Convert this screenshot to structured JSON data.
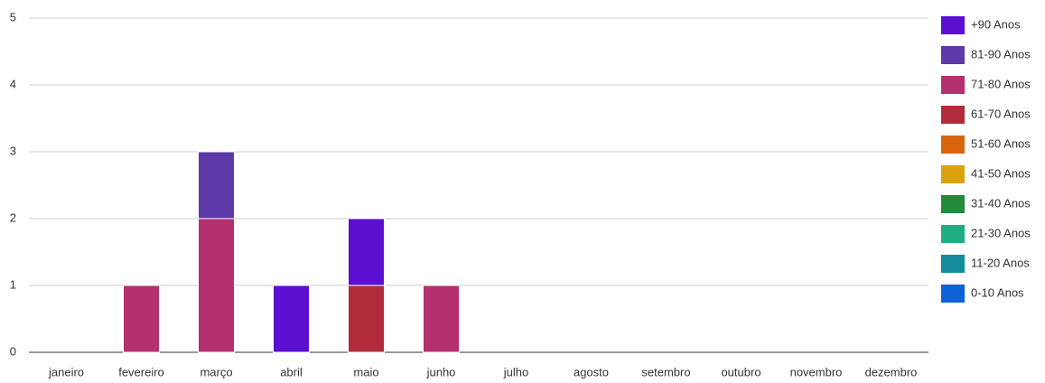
{
  "chart_data": {
    "type": "stacked_bar",
    "categories": [
      "janeiro",
      "fevereiro",
      "março",
      "abril",
      "maio",
      "junho",
      "julho",
      "agosto",
      "setembro",
      "outubro",
      "novembro",
      "dezembro"
    ],
    "series": [
      {
        "name": "+90 Anos",
        "color": "#5b0fd1",
        "values": [
          0,
          0,
          0,
          1,
          1,
          0,
          0,
          0,
          0,
          0,
          0,
          0
        ]
      },
      {
        "name": "81-90 Anos",
        "color": "#5e3aa8",
        "values": [
          0,
          0,
          1,
          0,
          0,
          0,
          0,
          0,
          0,
          0,
          0,
          0
        ]
      },
      {
        "name": "71-80 Anos",
        "color": "#b5306e",
        "values": [
          0,
          1,
          2,
          0,
          0,
          1,
          0,
          0,
          0,
          0,
          0,
          0
        ]
      },
      {
        "name": "61-70 Anos",
        "color": "#b22b3a",
        "values": [
          0,
          0,
          0,
          0,
          1,
          0,
          0,
          0,
          0,
          0,
          0,
          0
        ]
      },
      {
        "name": "51-60 Anos",
        "color": "#d9650f",
        "values": [
          0,
          0,
          0,
          0,
          0,
          0,
          0,
          0,
          0,
          0,
          0,
          0
        ]
      },
      {
        "name": "41-50 Anos",
        "color": "#dba40e",
        "values": [
          0,
          0,
          0,
          0,
          0,
          0,
          0,
          0,
          0,
          0,
          0,
          0
        ]
      },
      {
        "name": "31-40 Anos",
        "color": "#238b3a",
        "values": [
          0,
          0,
          0,
          0,
          0,
          0,
          0,
          0,
          0,
          0,
          0,
          0
        ]
      },
      {
        "name": "21-30 Anos",
        "color": "#1fae84",
        "values": [
          0,
          0,
          0,
          0,
          0,
          0,
          0,
          0,
          0,
          0,
          0,
          0
        ]
      },
      {
        "name": "11-20 Anos",
        "color": "#148a9c",
        "values": [
          0,
          0,
          0,
          0,
          0,
          0,
          0,
          0,
          0,
          0,
          0,
          0
        ]
      },
      {
        "name": "0-10 Anos",
        "color": "#0f62d6",
        "values": [
          0,
          0,
          0,
          0,
          0,
          0,
          0,
          0,
          0,
          0,
          0,
          0
        ]
      }
    ],
    "ylim": [
      0,
      5
    ],
    "yticks": [
      0,
      1,
      2,
      3,
      4,
      5
    ],
    "grid": true,
    "legend": "right"
  }
}
